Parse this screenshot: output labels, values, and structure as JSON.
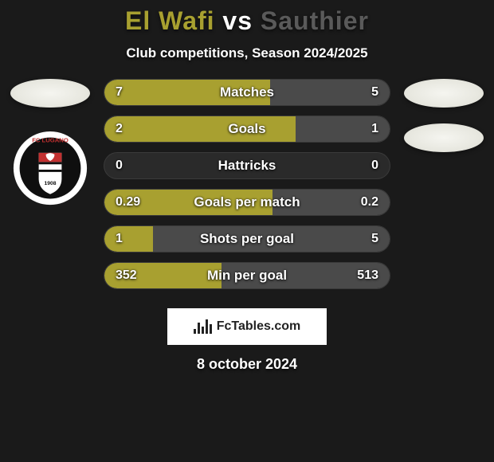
{
  "title": {
    "player1": "El Wafi",
    "vs": "vs",
    "player2": "Sauthier",
    "player1_color": "#a8a030",
    "vs_color": "#ffffff",
    "player2_color": "#5a5a5a"
  },
  "subtitle": "Club competitions, Season 2024/2025",
  "colors": {
    "left_bar": "#a8a030",
    "right_bar": "#4a4a4a",
    "track": "#2a2a2a",
    "background": "#1a1a1a"
  },
  "stats": [
    {
      "label": "Matches",
      "left_val": "7",
      "right_val": "5",
      "left_pct": 58,
      "right_pct": 42
    },
    {
      "label": "Goals",
      "left_val": "2",
      "right_val": "1",
      "left_pct": 67,
      "right_pct": 33
    },
    {
      "label": "Hattricks",
      "left_val": "0",
      "right_val": "0",
      "left_pct": 0,
      "right_pct": 0
    },
    {
      "label": "Goals per match",
      "left_val": "0.29",
      "right_val": "0.2",
      "left_pct": 59,
      "right_pct": 41
    },
    {
      "label": "Shots per goal",
      "left_val": "1",
      "right_val": "5",
      "left_pct": 17,
      "right_pct": 83
    },
    {
      "label": "Min per goal",
      "left_val": "352",
      "right_val": "513",
      "left_pct": 41,
      "right_pct": 59
    }
  ],
  "footer_brand": "FcTables.com",
  "date": "8 october 2024",
  "badge": {
    "outer": "#ffffff",
    "inner": "#0f0f0f",
    "accent": "#c23030",
    "text_top": "FC LUGANO"
  }
}
